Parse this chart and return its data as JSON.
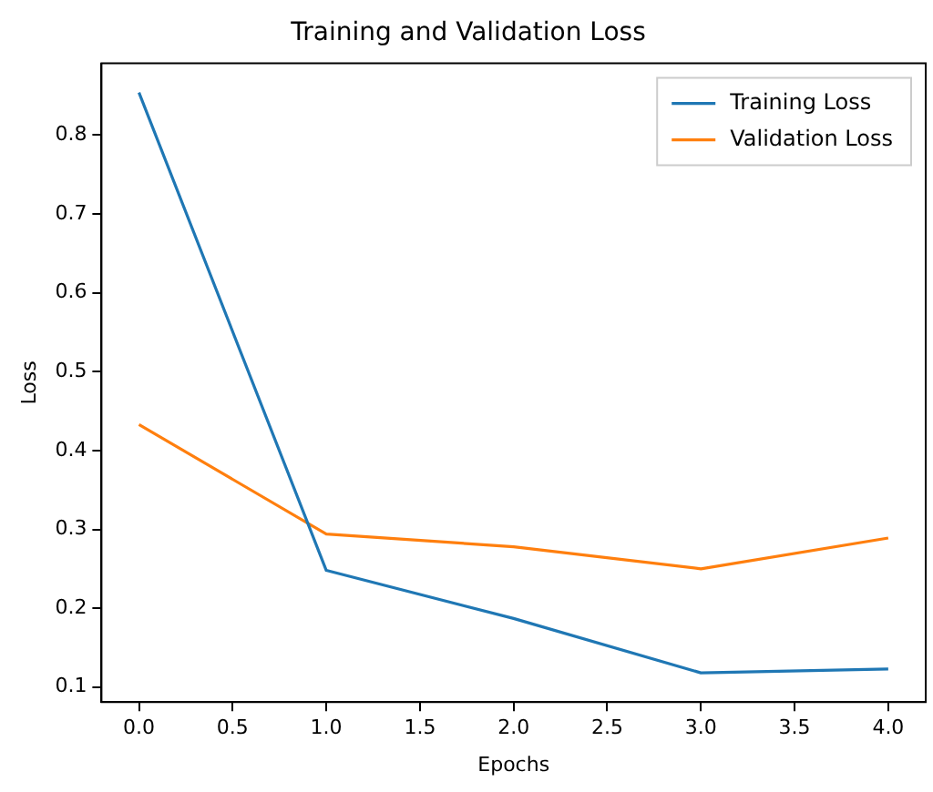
{
  "chart_data": {
    "type": "line",
    "title": "Training and Validation Loss",
    "xlabel": "Epochs",
    "ylabel": "Loss",
    "x": [
      0,
      1,
      2,
      3,
      4
    ],
    "series": [
      {
        "name": "Training Loss",
        "color": "#1f77b4",
        "values": [
          0.854,
          0.248,
          0.187,
          0.118,
          0.123
        ]
      },
      {
        "name": "Validation Loss",
        "color": "#ff7f0e",
        "values": [
          0.433,
          0.294,
          0.278,
          0.25,
          0.289
        ]
      }
    ],
    "xlim": [
      -0.2,
      4.2
    ],
    "xticks": [
      {
        "value": 0,
        "label": "0.0"
      },
      {
        "value": 0.5,
        "label": "0.5"
      },
      {
        "value": 1,
        "label": "1.0"
      },
      {
        "value": 1.5,
        "label": "1.5"
      },
      {
        "value": 2,
        "label": "2.0"
      },
      {
        "value": 2.5,
        "label": "2.5"
      },
      {
        "value": 3,
        "label": "3.0"
      },
      {
        "value": 3.5,
        "label": "3.5"
      },
      {
        "value": 4,
        "label": "4.0"
      }
    ],
    "ylim": [
      0.081,
      0.891
    ],
    "yticks": [
      0.1,
      0.2,
      0.3,
      0.4,
      0.5,
      0.6,
      0.7,
      0.8
    ],
    "grid": false,
    "legend": "top right",
    "marker": "none",
    "line_style": "solid"
  }
}
